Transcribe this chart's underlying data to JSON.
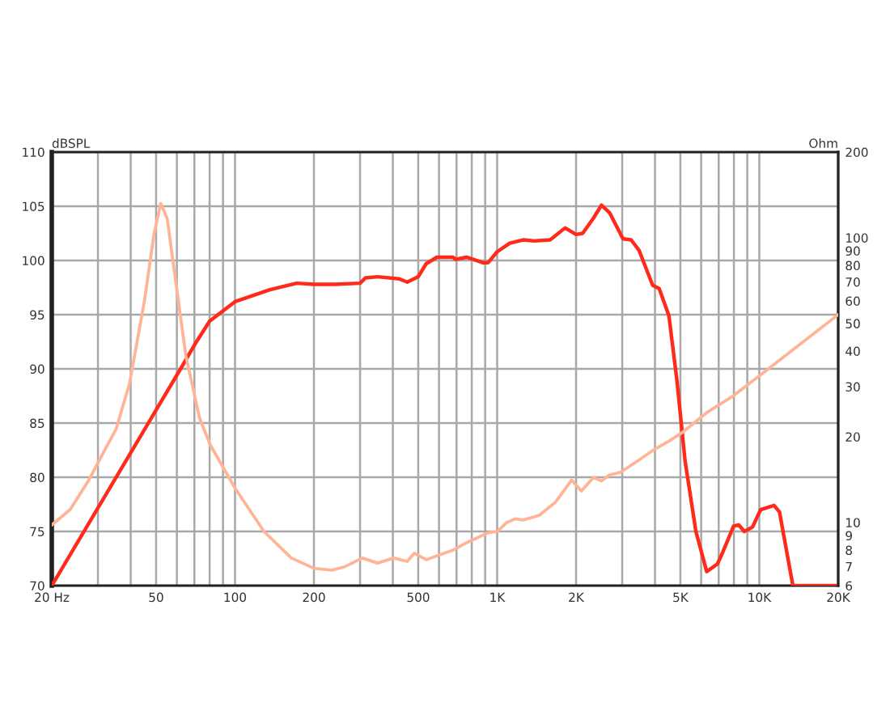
{
  "chart_data": [
    {
      "type": "line",
      "ylabel": "dBSPL",
      "log": "x",
      "grid": true,
      "xlim": [
        20,
        20000
      ],
      "xticks": [
        {
          "value": 20,
          "label": "20 Hz"
        },
        {
          "value": 30,
          "label": null
        },
        {
          "value": 40,
          "label": null
        },
        50,
        {
          "value": 60,
          "label": null
        },
        {
          "value": 70,
          "label": null
        },
        {
          "value": 80,
          "label": null
        },
        {
          "value": 90,
          "label": null
        },
        100,
        200,
        {
          "value": 300,
          "label": null
        },
        {
          "value": 400,
          "label": null
        },
        500,
        {
          "value": 600,
          "label": null
        },
        {
          "value": 700,
          "label": null
        },
        {
          "value": 800,
          "label": null
        },
        {
          "value": 900,
          "label": null
        },
        {
          "value": 1000,
          "label": "1K"
        },
        {
          "value": 2000,
          "label": "2K"
        },
        {
          "value": 3000,
          "label": null
        },
        {
          "value": 4000,
          "label": null
        },
        {
          "value": 5000,
          "label": "5K"
        },
        {
          "value": 6000,
          "label": null
        },
        {
          "value": 7000,
          "label": null
        },
        {
          "value": 8000,
          "label": null
        },
        {
          "value": 9000,
          "label": null
        },
        {
          "value": 10000,
          "label": "10K"
        },
        {
          "value": 20000,
          "label": "20K"
        }
      ],
      "ylim": [
        70,
        110
      ],
      "yticks": [
        70,
        75,
        80,
        85,
        90,
        95,
        100,
        105,
        110
      ],
      "series": [
        {
          "color": "#ff2a1a",
          "x": [
            20,
            50,
            62,
            70,
            80,
            100,
            136,
            172,
            200,
            240,
            300,
            315,
            350,
            423,
            454,
            500,
            536,
            589,
            679,
            695,
            764,
            881,
            924,
            1000,
            1117,
            1257,
            1384,
            1593,
            1794,
            1820,
            2000,
            2119,
            2329,
            2500,
            2685,
            3020,
            3243,
            3483,
            3920,
            4150,
            4520,
            4852,
            5210,
            5730,
            6300,
            6920,
            7260,
            7980,
            8350,
            8770,
            9420,
            10110,
            11380,
            11940,
            13430,
            20000
          ],
          "values": [
            70,
            86.2,
            90.0,
            92.2,
            94.4,
            96.2,
            97.3,
            97.9,
            97.8,
            97.8,
            97.9,
            98.4,
            98.5,
            98.3,
            98.0,
            98.5,
            99.7,
            100.3,
            100.3,
            100.1,
            100.3,
            99.8,
            99.8,
            100.8,
            101.6,
            101.9,
            101.8,
            101.9,
            102.9,
            103.0,
            102.4,
            102.5,
            103.9,
            105.1,
            104.4,
            102.0,
            101.9,
            100.9,
            97.7,
            97.4,
            94.9,
            88.9,
            81.5,
            75.0,
            71.3,
            72.0,
            73.1,
            75.5,
            75.6,
            75.0,
            75.4,
            77.0,
            77.4,
            76.8,
            70,
            70
          ]
        }
      ]
    },
    {
      "type": "line",
      "ylabel": "Ohm",
      "log": "xy",
      "tick_labels": "y",
      "xlim": [
        20,
        20000
      ],
      "ylim": [
        6,
        200
      ],
      "yticks": [
        6,
        7,
        8,
        9,
        10,
        20,
        30,
        40,
        50,
        60,
        70,
        80,
        90,
        100,
        200
      ],
      "series": [
        {
          "color": "#ffb496",
          "x": [
            20,
            23.5,
            27.7,
            32,
            35.2,
            39.6,
            45.2,
            49,
            52.1,
            55.1,
            59.2,
            65,
            73.3,
            80.5,
            100,
            129,
            164,
            200,
            234,
            263,
            306,
            350,
            403,
            454,
            483,
            536,
            679,
            747,
            924,
            1000,
            1089,
            1170,
            1257,
            1449,
            1671,
            1925,
            2095,
            2329,
            2500,
            2685,
            2950,
            3483,
            3920,
            4520,
            5010,
            6300,
            7980,
            10110,
            20000
          ],
          "values": [
            9.8,
            11.1,
            14.1,
            18.1,
            21.3,
            30.8,
            60.5,
            102,
            132,
            117,
            72,
            38.3,
            23.2,
            18.7,
            13.2,
            9.3,
            7.5,
            6.9,
            6.8,
            7.0,
            7.5,
            7.2,
            7.5,
            7.3,
            7.8,
            7.4,
            8.0,
            8.4,
            9.2,
            9.3,
            10.0,
            10.3,
            10.2,
            10.6,
            11.8,
            14.1,
            12.9,
            14.4,
            14.0,
            14.7,
            15.0,
            16.6,
            17.9,
            19.3,
            20.5,
            24.3,
            27.9,
            33.0,
            53.7
          ]
        }
      ]
    }
  ]
}
